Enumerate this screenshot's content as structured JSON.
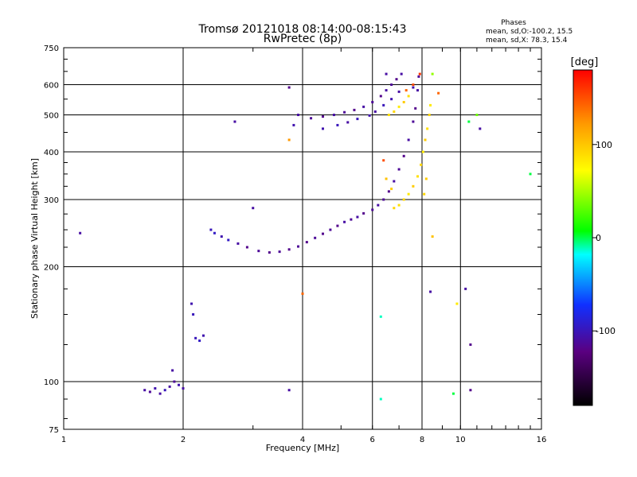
{
  "chart_data": {
    "type": "scatter",
    "title": "Tromsø 20121018 08:14:00-08:15:43",
    "subtitle": "RwPretec (8p)",
    "stats_heading": "Phases",
    "stats_o": "mean, sd,O:-100.2, 15.5",
    "stats_x": "mean, sd,X:  78.3, 15.4",
    "xlabel": "Frequency [MHz]",
    "ylabel": "Stationary phase Virtual Height [km]",
    "x_scale": "log",
    "y_scale": "log",
    "xlim": [
      1,
      16
    ],
    "ylim": [
      75,
      750
    ],
    "x_ticks": [
      1,
      2,
      4,
      6,
      8,
      10,
      16
    ],
    "x_ticklabels": [
      "1",
      "2",
      "4",
      "6",
      "8",
      "10",
      "16"
    ],
    "y_ticks": [
      75,
      100,
      200,
      300,
      400,
      500,
      600,
      750
    ],
    "y_ticklabels": [
      "75",
      "100",
      "200",
      "300",
      "400",
      "500",
      "600",
      "750"
    ],
    "grid": true,
    "colorbar": {
      "label": "[deg]",
      "range": [
        -180,
        180
      ],
      "ticks": [
        100,
        0,
        -100
      ],
      "ticklabels": [
        "100",
        "0",
        "-100"
      ]
    },
    "series": [
      {
        "points": [
          [
            1.1,
            245,
            -110
          ],
          [
            1.6,
            95,
            -110
          ],
          [
            1.65,
            94,
            -115
          ],
          [
            1.7,
            96,
            -105
          ],
          [
            1.75,
            93,
            -110
          ],
          [
            1.8,
            95,
            -100
          ],
          [
            1.85,
            97,
            -110
          ],
          [
            1.9,
            100,
            -115
          ],
          [
            1.95,
            98,
            -105
          ],
          [
            2.0,
            96,
            -110
          ],
          [
            1.88,
            107,
            -110
          ],
          [
            2.1,
            160,
            -105
          ],
          [
            2.12,
            150,
            -100
          ],
          [
            2.15,
            130,
            -100
          ],
          [
            2.2,
            128,
            -95
          ],
          [
            2.25,
            132,
            -105
          ],
          [
            2.35,
            250,
            -100
          ],
          [
            2.4,
            245,
            -95
          ],
          [
            2.5,
            240,
            -105
          ],
          [
            2.6,
            235,
            -95
          ],
          [
            2.75,
            230,
            -110
          ],
          [
            2.9,
            225,
            -120
          ],
          [
            3.1,
            220,
            -115
          ],
          [
            3.3,
            218,
            -120
          ],
          [
            3.5,
            219,
            -115
          ],
          [
            3.7,
            222,
            -120
          ],
          [
            3.9,
            226,
            -115
          ],
          [
            4.1,
            232,
            -120
          ],
          [
            4.3,
            238,
            -115
          ],
          [
            4.5,
            244,
            -120
          ],
          [
            4.7,
            250,
            -115
          ],
          [
            4.9,
            256,
            -120
          ],
          [
            5.1,
            262,
            -110
          ],
          [
            5.3,
            266,
            -115
          ],
          [
            5.5,
            270,
            -110
          ],
          [
            5.7,
            276,
            -120
          ],
          [
            6.0,
            282,
            -115
          ],
          [
            6.2,
            290,
            -110
          ],
          [
            6.4,
            300,
            -115
          ],
          [
            6.6,
            315,
            -120
          ],
          [
            6.8,
            335,
            -110
          ],
          [
            7.0,
            360,
            -115
          ],
          [
            7.2,
            390,
            -120
          ],
          [
            7.4,
            430,
            -110
          ],
          [
            7.6,
            480,
            -115
          ],
          [
            7.7,
            520,
            -120
          ],
          [
            7.8,
            580,
            -110
          ],
          [
            7.85,
            630,
            -115
          ],
          [
            3.9,
            500,
            -110
          ],
          [
            4.2,
            490,
            -115
          ],
          [
            4.5,
            495,
            -120
          ],
          [
            4.8,
            500,
            -110
          ],
          [
            5.1,
            508,
            -115
          ],
          [
            5.4,
            515,
            -120
          ],
          [
            5.7,
            525,
            -110
          ],
          [
            6.0,
            540,
            -115
          ],
          [
            6.3,
            560,
            -120
          ],
          [
            6.5,
            580,
            -110
          ],
          [
            6.7,
            600,
            -115
          ],
          [
            6.9,
            620,
            -120
          ],
          [
            7.1,
            640,
            -110
          ],
          [
            4.5,
            460,
            -105
          ],
          [
            4.9,
            470,
            -100
          ],
          [
            5.2,
            478,
            -110
          ],
          [
            5.5,
            488,
            -100
          ],
          [
            5.9,
            498,
            -105
          ],
          [
            6.1,
            510,
            -110
          ],
          [
            6.4,
            530,
            -100
          ],
          [
            6.7,
            550,
            -105
          ],
          [
            7.0,
            575,
            -110
          ],
          [
            2.7,
            480,
            -110
          ],
          [
            3.0,
            285,
            -110
          ],
          [
            3.7,
            590,
            -120
          ],
          [
            3.8,
            470,
            -105
          ],
          [
            6.5,
            640,
            -110
          ],
          [
            7.6,
            590,
            -105
          ],
          [
            8.5,
            640,
            40
          ],
          [
            10.5,
            480,
            -5
          ],
          [
            11.2,
            460,
            -110
          ],
          [
            11.0,
            500,
            30
          ],
          [
            15.0,
            350,
            -5
          ],
          [
            3.7,
            95,
            -110
          ],
          [
            6.3,
            90,
            -15
          ],
          [
            9.6,
            93,
            -5
          ],
          [
            10.6,
            95,
            -120
          ],
          [
            8.4,
            172,
            -110
          ],
          [
            10.3,
            175,
            -110
          ],
          [
            10.6,
            125,
            -120
          ],
          [
            6.3,
            148,
            -15
          ]
        ]
      },
      {
        "points": [
          [
            6.8,
            285,
            90
          ],
          [
            7.0,
            290,
            85
          ],
          [
            7.2,
            300,
            90
          ],
          [
            7.4,
            310,
            80
          ],
          [
            7.6,
            325,
            95
          ],
          [
            7.8,
            345,
            85
          ],
          [
            7.95,
            370,
            90
          ],
          [
            8.05,
            400,
            80
          ],
          [
            8.15,
            430,
            95
          ],
          [
            8.25,
            460,
            85
          ],
          [
            8.35,
            500,
            90
          ],
          [
            8.4,
            530,
            80
          ],
          [
            6.6,
            500,
            85
          ],
          [
            6.8,
            510,
            90
          ],
          [
            7.0,
            525,
            80
          ],
          [
            7.2,
            540,
            95
          ],
          [
            7.4,
            560,
            85
          ],
          [
            7.3,
            580,
            140
          ],
          [
            7.6,
            600,
            150
          ],
          [
            7.9,
            640,
            160
          ],
          [
            8.8,
            570,
            140
          ],
          [
            3.7,
            430,
            120
          ],
          [
            8.5,
            240,
            100
          ],
          [
            4.0,
            170,
            140
          ],
          [
            6.4,
            380,
            150
          ],
          [
            9.8,
            160,
            80
          ],
          [
            6.5,
            340,
            100
          ],
          [
            6.7,
            320,
            95
          ],
          [
            8.2,
            340,
            95
          ],
          [
            8.1,
            310,
            90
          ]
        ]
      }
    ]
  }
}
